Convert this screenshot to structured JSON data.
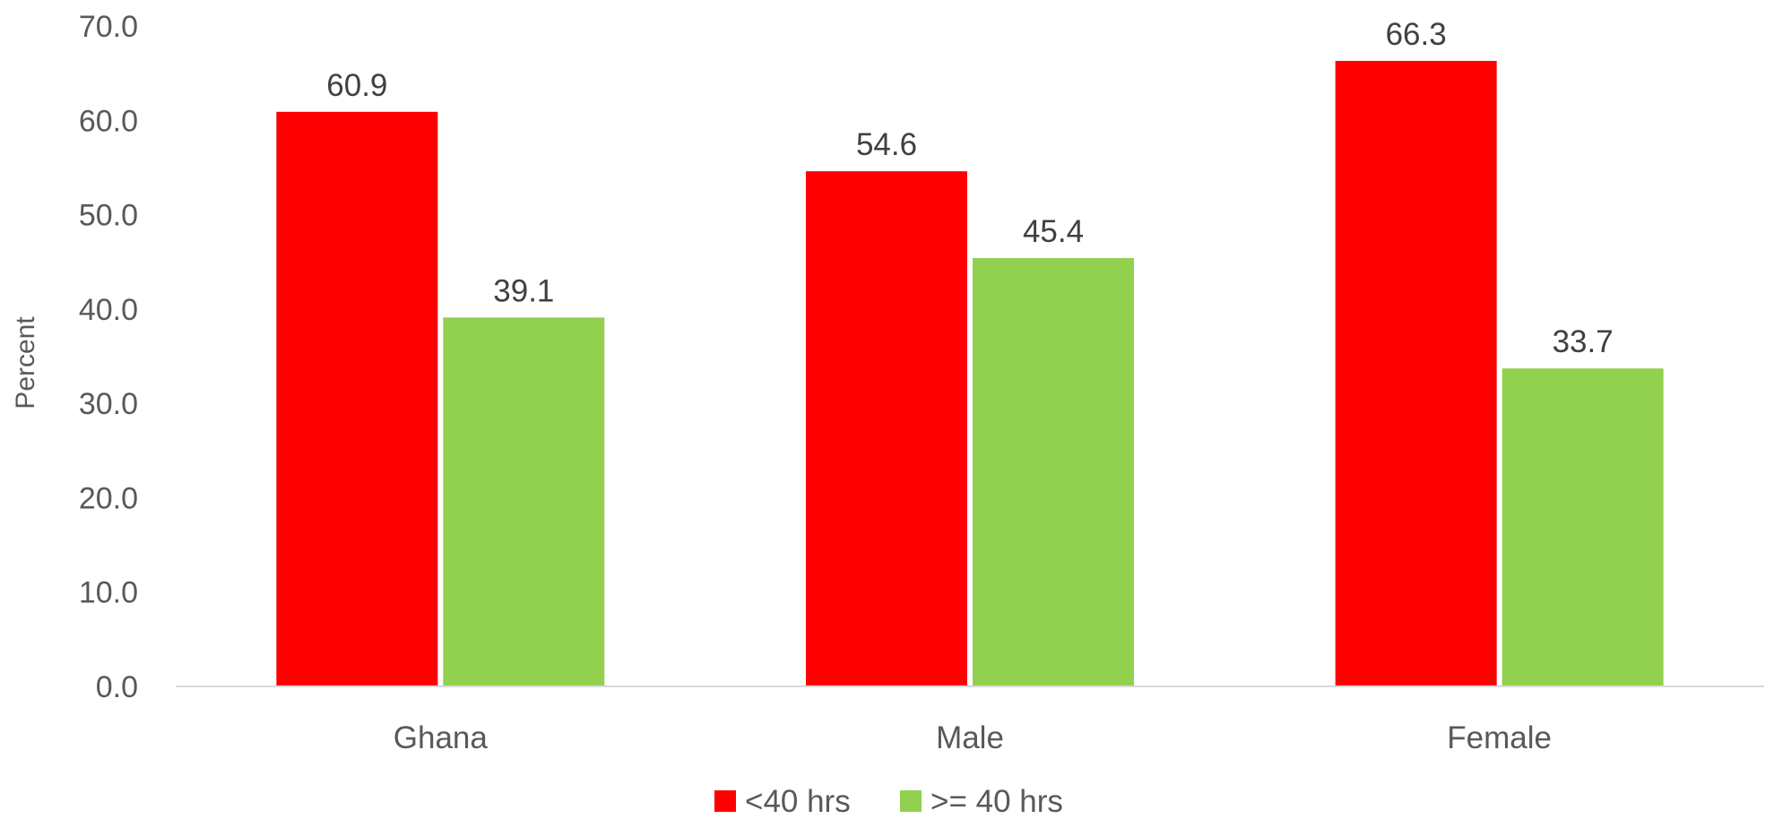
{
  "chart_data": {
    "type": "bar",
    "categories": [
      "Ghana",
      "Male",
      "Female"
    ],
    "series": [
      {
        "name": "<40 hrs",
        "color": "#ff0000",
        "values": [
          60.9,
          54.6,
          66.3
        ]
      },
      {
        "name": ">= 40 hrs",
        "color": "#92d050",
        "values": [
          39.1,
          45.4,
          33.7
        ]
      }
    ],
    "title": "",
    "xlabel": "",
    "ylabel": "Percent",
    "ylim": [
      0,
      70
    ],
    "yticks": [
      "0.0",
      "10.0",
      "20.0",
      "30.0",
      "40.0",
      "50.0",
      "60.0",
      "70.0"
    ],
    "grid": false,
    "legend_position": "bottom"
  }
}
